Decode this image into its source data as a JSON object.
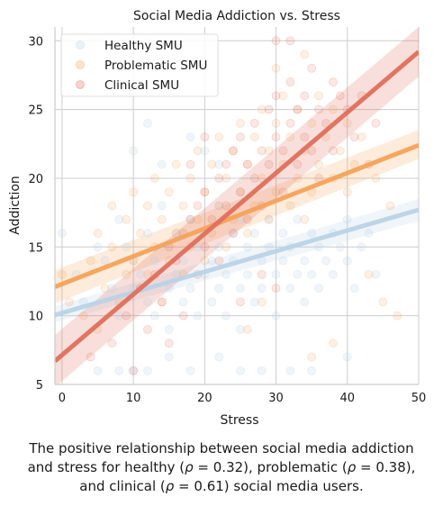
{
  "chart_data": {
    "type": "scatter",
    "title": "Social Media Addiction vs. Stress",
    "xlabel": "Stress",
    "ylabel": "Addiction",
    "xlim": [
      -1,
      50
    ],
    "ylim": [
      5,
      31
    ],
    "xticks": [
      0,
      10,
      20,
      30,
      40,
      50
    ],
    "yticks": [
      5,
      10,
      15,
      20,
      25,
      30
    ],
    "grid": true,
    "legend_position": "top-left",
    "legend_entries": [
      "Healthy SMU",
      "Problematic SMU",
      "Clinical SMU"
    ],
    "series": [
      {
        "name": "Healthy SMU",
        "color": "#b9d3e6",
        "regression": {
          "x": [
            -1,
            50
          ],
          "y": [
            10.05,
            17.7
          ]
        },
        "ci_band": {
          "x": [
            -1,
            50
          ],
          "lower": [
            9.5,
            16.9
          ],
          "upper": [
            10.7,
            18.5
          ]
        },
        "points": [
          [
            0,
            16
          ],
          [
            2,
            13
          ],
          [
            3,
            11
          ],
          [
            5,
            15
          ],
          [
            6,
            14
          ],
          [
            7,
            12
          ],
          [
            8,
            17
          ],
          [
            8,
            10
          ],
          [
            9,
            15
          ],
          [
            10,
            14
          ],
          [
            10,
            12
          ],
          [
            11,
            13
          ],
          [
            12,
            16
          ],
          [
            12,
            11
          ],
          [
            13,
            14
          ],
          [
            13,
            10
          ],
          [
            14,
            18
          ],
          [
            14,
            15
          ],
          [
            15,
            12
          ],
          [
            15,
            9
          ],
          [
            16,
            16
          ],
          [
            16,
            13
          ],
          [
            17,
            14
          ],
          [
            17,
            11
          ],
          [
            18,
            17
          ],
          [
            18,
            12
          ],
          [
            19,
            15
          ],
          [
            19,
            10
          ],
          [
            20,
            16
          ],
          [
            20,
            13
          ],
          [
            21,
            14
          ],
          [
            21,
            11
          ],
          [
            22,
            18
          ],
          [
            22,
            15
          ],
          [
            22,
            12
          ],
          [
            23,
            13
          ],
          [
            23,
            10
          ],
          [
            24,
            16
          ],
          [
            24,
            14
          ],
          [
            25,
            17
          ],
          [
            25,
            12
          ],
          [
            25,
            9
          ],
          [
            26,
            15
          ],
          [
            26,
            13
          ],
          [
            27,
            16
          ],
          [
            27,
            11
          ],
          [
            28,
            14
          ],
          [
            28,
            12
          ],
          [
            29,
            17
          ],
          [
            29,
            15
          ],
          [
            30,
            13
          ],
          [
            30,
            10
          ],
          [
            31,
            16
          ],
          [
            31,
            14
          ],
          [
            32,
            12
          ],
          [
            32,
            15
          ],
          [
            33,
            17
          ],
          [
            33,
            13
          ],
          [
            34,
            14
          ],
          [
            34,
            11
          ],
          [
            35,
            16
          ],
          [
            35,
            13
          ],
          [
            36,
            15
          ],
          [
            36,
            12
          ],
          [
            37,
            14
          ],
          [
            38,
            16
          ],
          [
            38,
            13
          ],
          [
            39,
            15
          ],
          [
            40,
            17
          ],
          [
            40,
            14
          ],
          [
            41,
            12
          ],
          [
            42,
            15
          ],
          [
            43,
            16
          ],
          [
            44,
            13
          ],
          [
            5,
            6
          ],
          [
            8,
            6
          ],
          [
            10,
            6
          ],
          [
            12,
            6
          ],
          [
            15,
            7
          ],
          [
            18,
            6
          ],
          [
            22,
            7
          ],
          [
            25,
            6
          ],
          [
            28,
            6
          ],
          [
            32,
            6
          ],
          [
            35,
            6
          ],
          [
            40,
            7
          ],
          [
            10,
            22
          ],
          [
            12,
            24
          ],
          [
            14,
            21
          ],
          [
            18,
            23
          ],
          [
            20,
            22
          ],
          [
            22,
            21
          ]
        ]
      },
      {
        "name": "Problematic SMU",
        "color": "#f4a259",
        "regression": {
          "x": [
            -1,
            50
          ],
          "y": [
            12.1,
            22.4
          ]
        },
        "ci_band": {
          "x": [
            -1,
            50
          ],
          "lower": [
            10.9,
            21.4
          ],
          "upper": [
            13.3,
            23.5
          ]
        },
        "points": [
          [
            0,
            13
          ],
          [
            1,
            11
          ],
          [
            3,
            10
          ],
          [
            4,
            14
          ],
          [
            5,
            9
          ],
          [
            5,
            16
          ],
          [
            6,
            12
          ],
          [
            7,
            18
          ],
          [
            7,
            15
          ],
          [
            8,
            11
          ],
          [
            9,
            13
          ],
          [
            9,
            17
          ],
          [
            10,
            14
          ],
          [
            10,
            19
          ],
          [
            11,
            12
          ],
          [
            11,
            16
          ],
          [
            12,
            18
          ],
          [
            12,
            13
          ],
          [
            13,
            15
          ],
          [
            13,
            20
          ],
          [
            14,
            17
          ],
          [
            14,
            11
          ],
          [
            15,
            19
          ],
          [
            15,
            14
          ],
          [
            16,
            16
          ],
          [
            16,
            21
          ],
          [
            17,
            13
          ],
          [
            17,
            18
          ],
          [
            18,
            20
          ],
          [
            18,
            15
          ],
          [
            19,
            17
          ],
          [
            19,
            22
          ],
          [
            20,
            14
          ],
          [
            20,
            19
          ],
          [
            21,
            21
          ],
          [
            21,
            16
          ],
          [
            22,
            18
          ],
          [
            22,
            23
          ],
          [
            23,
            15
          ],
          [
            23,
            20
          ],
          [
            24,
            22
          ],
          [
            24,
            17
          ],
          [
            25,
            19
          ],
          [
            25,
            24
          ],
          [
            26,
            16
          ],
          [
            26,
            21
          ],
          [
            27,
            23
          ],
          [
            27,
            18
          ],
          [
            28,
            20
          ],
          [
            28,
            25
          ],
          [
            29,
            17
          ],
          [
            29,
            22
          ],
          [
            30,
            24
          ],
          [
            30,
            19
          ],
          [
            31,
            21
          ],
          [
            31,
            26
          ],
          [
            32,
            18
          ],
          [
            32,
            23
          ],
          [
            33,
            25
          ],
          [
            33,
            20
          ],
          [
            34,
            22
          ],
          [
            34,
            17
          ],
          [
            35,
            24
          ],
          [
            35,
            19
          ],
          [
            36,
            21
          ],
          [
            36,
            26
          ],
          [
            37,
            23
          ],
          [
            38,
            20
          ],
          [
            38,
            25
          ],
          [
            39,
            22
          ],
          [
            40,
            24
          ],
          [
            40,
            19
          ],
          [
            41,
            21
          ],
          [
            42,
            23
          ],
          [
            43,
            13
          ],
          [
            44,
            20
          ],
          [
            45,
            11
          ],
          [
            46,
            18
          ],
          [
            47,
            10
          ],
          [
            38,
            8
          ],
          [
            35,
            7
          ],
          [
            30,
            28
          ],
          [
            34,
            29
          ],
          [
            28,
            11
          ],
          [
            26,
            9
          ]
        ]
      },
      {
        "name": "Clinical SMU",
        "color": "#df6f5c",
        "regression": {
          "x": [
            -1,
            50
          ],
          "y": [
            6.7,
            29.2
          ]
        },
        "ci_band": {
          "x": [
            -1,
            50
          ],
          "lower": [
            4.8,
            27.4
          ],
          "upper": [
            8.6,
            31.0
          ]
        },
        "points": [
          [
            4,
            7
          ],
          [
            7,
            8
          ],
          [
            9,
            10
          ],
          [
            10,
            6
          ],
          [
            11,
            12
          ],
          [
            12,
            9
          ],
          [
            13,
            13
          ],
          [
            14,
            11
          ],
          [
            15,
            15
          ],
          [
            15,
            8
          ],
          [
            16,
            14
          ],
          [
            17,
            16
          ],
          [
            17,
            10
          ],
          [
            18,
            17
          ],
          [
            19,
            13
          ],
          [
            19,
            18
          ],
          [
            20,
            15
          ],
          [
            20,
            19
          ],
          [
            21,
            17
          ],
          [
            22,
            20
          ],
          [
            22,
            14
          ],
          [
            23,
            18
          ],
          [
            23,
            21
          ],
          [
            24,
            16
          ],
          [
            24,
            22
          ],
          [
            25,
            19
          ],
          [
            25,
            23
          ],
          [
            26,
            17
          ],
          [
            26,
            21
          ],
          [
            27,
            24
          ],
          [
            27,
            20
          ],
          [
            28,
            22
          ],
          [
            28,
            18
          ],
          [
            29,
            25
          ],
          [
            29,
            21
          ],
          [
            30,
            23
          ],
          [
            30,
            26
          ],
          [
            31,
            22
          ],
          [
            31,
            19
          ],
          [
            32,
            24
          ],
          [
            32,
            27
          ],
          [
            33,
            25
          ],
          [
            33,
            21
          ],
          [
            34,
            26
          ],
          [
            34,
            23
          ],
          [
            35,
            22
          ],
          [
            35,
            28
          ],
          [
            36,
            25
          ],
          [
            36,
            20
          ],
          [
            37,
            24
          ],
          [
            38,
            27
          ],
          [
            38,
            22
          ],
          [
            39,
            26
          ],
          [
            40,
            25
          ],
          [
            41,
            23
          ],
          [
            42,
            26
          ],
          [
            43,
            21
          ],
          [
            44,
            24
          ],
          [
            25,
            11
          ],
          [
            28,
            13
          ],
          [
            30,
            12
          ],
          [
            20,
            23
          ],
          [
            18,
            21
          ],
          [
            32,
            30
          ],
          [
            30,
            30
          ]
        ]
      }
    ]
  },
  "caption": {
    "line1": "The positive relationship between social media addiction",
    "line2_a": "and stress for healthy (",
    "line2_b": " = 0.32), problematic (",
    "line2_c": " = 0.38),",
    "line3_a": "and clinical (",
    "line3_b": " = 0.61) social media users.",
    "rho_symbol": "ρ"
  }
}
